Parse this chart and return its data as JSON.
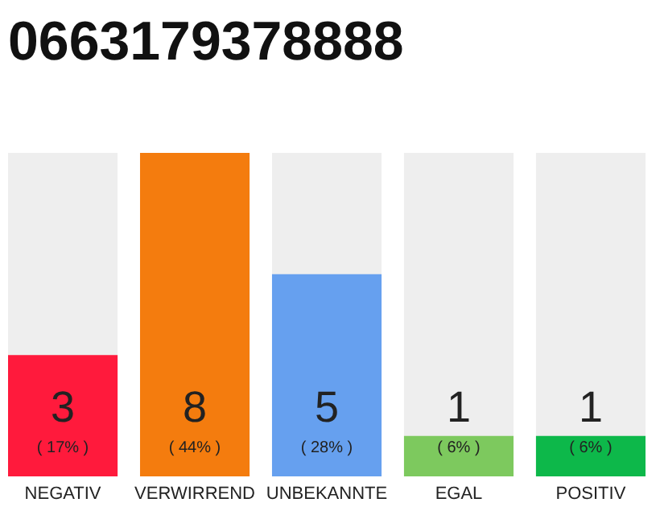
{
  "chart_data": {
    "type": "bar",
    "title": "0663179378888",
    "categories": [
      "NEGATIV",
      "VERWIRREND",
      "UNBEKANNTE",
      "EGAL",
      "POSITIV"
    ],
    "values": [
      3,
      8,
      5,
      1,
      1
    ],
    "colors": [
      "#ff1a3c",
      "#f47c0e",
      "#66a0ef",
      "#7dc95e",
      "#0db84a"
    ],
    "ylim": [
      0,
      8
    ],
    "tick_labels": "x",
    "data_labels": true,
    "annotations": [
      "( 17% )",
      "( 44% )",
      "( 28% )",
      "( 6% )",
      "( 6% )"
    ]
  }
}
